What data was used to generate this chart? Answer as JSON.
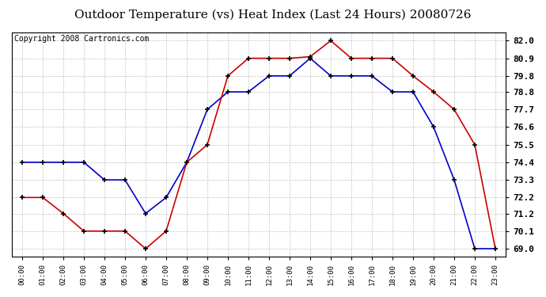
{
  "title": "Outdoor Temperature (vs) Heat Index (Last 24 Hours) 20080726",
  "copyright": "Copyright 2008 Cartronics.com",
  "x_labels": [
    "00:00",
    "01:00",
    "02:00",
    "03:00",
    "04:00",
    "05:00",
    "06:00",
    "07:00",
    "08:00",
    "09:00",
    "10:00",
    "11:00",
    "12:00",
    "13:00",
    "14:00",
    "15:00",
    "16:00",
    "17:00",
    "18:00",
    "19:00",
    "20:00",
    "21:00",
    "22:00",
    "23:00"
  ],
  "blue_data": [
    74.4,
    74.4,
    74.4,
    74.4,
    73.3,
    73.3,
    71.2,
    72.2,
    74.4,
    77.7,
    78.8,
    78.8,
    79.8,
    79.8,
    80.9,
    79.8,
    79.8,
    79.8,
    78.8,
    78.8,
    76.6,
    73.3,
    69.0,
    69.0
  ],
  "red_data": [
    72.2,
    72.2,
    71.2,
    70.1,
    70.1,
    70.1,
    69.0,
    70.1,
    74.4,
    75.5,
    79.8,
    80.9,
    80.9,
    80.9,
    81.0,
    82.0,
    80.9,
    80.9,
    80.9,
    79.8,
    78.8,
    77.7,
    75.5,
    69.0
  ],
  "ylim": [
    68.5,
    82.5
  ],
  "yticks": [
    69.0,
    70.1,
    71.2,
    72.2,
    73.3,
    74.4,
    75.5,
    76.6,
    77.7,
    78.8,
    79.8,
    80.9,
    82.0
  ],
  "blue_color": "#0000cc",
  "red_color": "#cc0000",
  "bg_color": "#ffffff",
  "plot_bg": "#ffffff",
  "grid_color": "#bbbbbb",
  "title_fontsize": 11,
  "copyright_fontsize": 7
}
